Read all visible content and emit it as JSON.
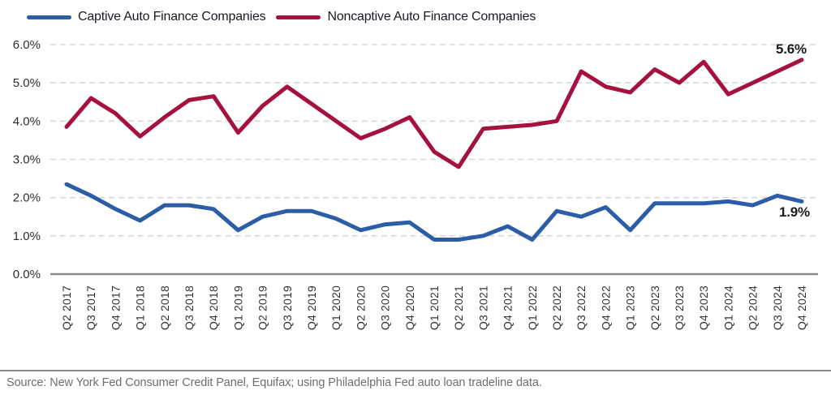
{
  "legend": {
    "captive_label": "Captive Auto Finance Companies",
    "noncaptive_label": "Noncaptive Auto Finance Companies"
  },
  "chart_data": {
    "type": "line",
    "categories": [
      "Q2 2017",
      "Q3 2017",
      "Q4 2017",
      "Q1 2018",
      "Q2 2018",
      "Q3 2018",
      "Q4 2018",
      "Q1 2019",
      "Q2 2019",
      "Q3 2019",
      "Q4 2019",
      "Q1 2020",
      "Q2 2020",
      "Q3 2020",
      "Q4 2020",
      "Q1 2021",
      "Q2 2021",
      "Q3 2021",
      "Q4 2021",
      "Q1 2022",
      "Q2 2022",
      "Q3 2022",
      "Q4 2022",
      "Q1 2023",
      "Q2 2023",
      "Q3 2023",
      "Q4 2023",
      "Q1 2024",
      "Q2 2024",
      "Q3 2024",
      "Q4 2024"
    ],
    "series": [
      {
        "key": "captive",
        "name": "Captive Auto Finance Companies",
        "color": "#2B5EA7",
        "values": [
          2.35,
          2.05,
          1.7,
          1.4,
          1.8,
          1.8,
          1.7,
          1.15,
          1.5,
          1.65,
          1.65,
          1.45,
          1.15,
          1.3,
          1.35,
          0.9,
          0.9,
          1.0,
          1.25,
          0.9,
          1.65,
          1.5,
          1.75,
          1.15,
          1.85,
          1.85,
          1.85,
          1.9,
          1.8,
          2.05,
          1.9
        ]
      },
      {
        "key": "noncaptive",
        "name": "Noncaptive Auto Finance Companies",
        "color": "#A6113D",
        "values": [
          3.85,
          4.6,
          4.2,
          3.6,
          4.1,
          4.55,
          4.65,
          3.7,
          4.4,
          4.9,
          4.45,
          4.0,
          3.55,
          3.8,
          4.1,
          3.2,
          2.8,
          3.8,
          3.85,
          3.9,
          4.0,
          5.3,
          4.9,
          4.75,
          5.35,
          5.0,
          5.55,
          4.7,
          5.0,
          5.3,
          5.6
        ]
      }
    ],
    "y_ticks": [
      "0.0%",
      "1.0%",
      "2.0%",
      "3.0%",
      "4.0%",
      "5.0%",
      "6.0%"
    ],
    "ylim": [
      0,
      6
    ],
    "grid": "horizontal-dashed",
    "legend_position": "top-left",
    "end_labels": {
      "noncaptive": "5.6%",
      "captive": "1.9%"
    }
  },
  "footer": {
    "source": "Source: New York Fed Consumer Credit Panel, Equifax; using Philadelphia Fed auto loan tradeline data."
  }
}
